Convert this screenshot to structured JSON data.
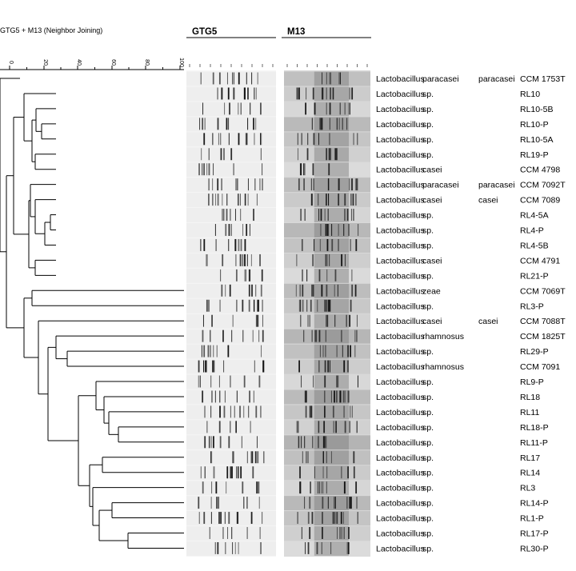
{
  "title": "GTG5 + M13 (Neighbor Joining)",
  "panels": {
    "gtg5": "GTG5",
    "m13": "M13"
  },
  "scale_ticks": [
    "100",
    "80",
    "60",
    "40",
    "20",
    "0"
  ],
  "rows": [
    {
      "genus": "Lactobacillus",
      "species": "paracasei",
      "subspecies": "paracasei",
      "strain": "CCM 1753T"
    },
    {
      "genus": "Lactobacillus",
      "species": "sp.",
      "subspecies": "",
      "strain": "RL10"
    },
    {
      "genus": "Lactobacillus",
      "species": "sp.",
      "subspecies": "",
      "strain": "RL10-5B"
    },
    {
      "genus": "Lactobacillus",
      "species": "sp.",
      "subspecies": "",
      "strain": "RL10-P"
    },
    {
      "genus": "Lactobacillus",
      "species": "sp.",
      "subspecies": "",
      "strain": "RL10-5A"
    },
    {
      "genus": "Lactobacillus",
      "species": "sp.",
      "subspecies": "",
      "strain": "RL19-P"
    },
    {
      "genus": "Lactobacillus",
      "species": "casei",
      "subspecies": "",
      "strain": "CCM 4798"
    },
    {
      "genus": "Lactobacillus",
      "species": "paracasei",
      "subspecies": "paracasei",
      "strain": "CCM 7092T"
    },
    {
      "genus": "Lactobacillus",
      "species": "casei",
      "subspecies": "casei",
      "strain": "CCM 7089"
    },
    {
      "genus": "Lactobacillus",
      "species": "sp.",
      "subspecies": "",
      "strain": "RL4-5A"
    },
    {
      "genus": "Lactobacillus",
      "species": "sp.",
      "subspecies": "",
      "strain": "RL4-P"
    },
    {
      "genus": "Lactobacillus",
      "species": "sp.",
      "subspecies": "",
      "strain": "RL4-5B"
    },
    {
      "genus": "Lactobacillus",
      "species": "casei",
      "subspecies": "",
      "strain": "CCM 4791"
    },
    {
      "genus": "Lactobacillus",
      "species": "sp.",
      "subspecies": "",
      "strain": "RL21-P"
    },
    {
      "genus": "Lactobacillus",
      "species": "zeae",
      "subspecies": "",
      "strain": "CCM 7069T"
    },
    {
      "genus": "Lactobacillus",
      "species": "sp.",
      "subspecies": "",
      "strain": "RL3-P"
    },
    {
      "genus": "Lactobacillus",
      "species": "casei",
      "subspecies": "casei",
      "strain": "CCM 7088T"
    },
    {
      "genus": "Lactobacillus",
      "species": "rhamnosus",
      "subspecies": "",
      "strain": "CCM 1825T"
    },
    {
      "genus": "Lactobacillus",
      "species": "sp.",
      "subspecies": "",
      "strain": "RL29-P"
    },
    {
      "genus": "Lactobacillus",
      "species": "rhamnosus",
      "subspecies": "",
      "strain": "CCM 7091"
    },
    {
      "genus": "Lactobacillus",
      "species": "sp.",
      "subspecies": "",
      "strain": "RL9-P"
    },
    {
      "genus": "Lactobacillus",
      "species": "sp.",
      "subspecies": "",
      "strain": "RL18"
    },
    {
      "genus": "Lactobacillus",
      "species": "sp.",
      "subspecies": "",
      "strain": "RL11"
    },
    {
      "genus": "Lactobacillus",
      "species": "sp.",
      "subspecies": "",
      "strain": "RL18-P"
    },
    {
      "genus": "Lactobacillus",
      "species": "sp.",
      "subspecies": "",
      "strain": "RL11-P"
    },
    {
      "genus": "Lactobacillus",
      "species": "sp.",
      "subspecies": "",
      "strain": "RL17"
    },
    {
      "genus": "Lactobacillus",
      "species": "sp.",
      "subspecies": "",
      "strain": "RL14"
    },
    {
      "genus": "Lactobacillus",
      "species": "sp.",
      "subspecies": "",
      "strain": "RL3"
    },
    {
      "genus": "Lactobacillus",
      "species": "sp.",
      "subspecies": "",
      "strain": "RL14-P"
    },
    {
      "genus": "Lactobacillus",
      "species": "sp.",
      "subspecies": "",
      "strain": "RL1-P"
    },
    {
      "genus": "Lactobacillus",
      "species": "sp.",
      "subspecies": "",
      "strain": "RL17-P"
    },
    {
      "genus": "Lactobacillus",
      "species": "sp.",
      "subspecies": "",
      "strain": "RL30-P"
    }
  ],
  "colors": {
    "line": "#000000",
    "gel_light": "#efefef",
    "gel_dark": "#8a8a8a",
    "band": "#111111"
  }
}
